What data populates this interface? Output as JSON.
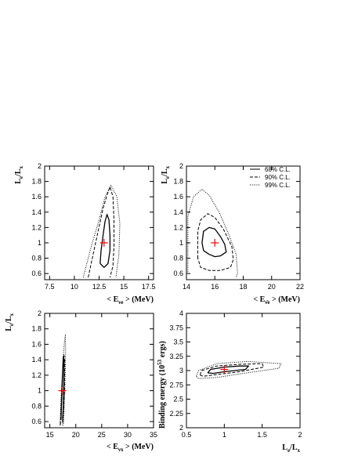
{
  "chart_data": [
    {
      "id": "p1",
      "type": "contour",
      "xlabel": "< E_{νe} > (MeV)",
      "ylabel": "L_e/L_x",
      "xlim": [
        7.0,
        18.0
      ],
      "ylim": [
        0.52,
        2.0
      ],
      "xticks": [
        "7.5",
        "10",
        "12.5",
        "15",
        "17.5"
      ],
      "xtick_values": [
        7.5,
        10,
        12.5,
        15,
        17.5
      ],
      "yticks": [
        "0.6",
        "0.8",
        "1",
        "1.2",
        "1.4",
        "1.6",
        "1.8",
        "2"
      ],
      "ytick_values": [
        0.6,
        0.8,
        1.0,
        1.2,
        1.4,
        1.6,
        1.8,
        2.0
      ],
      "best_fit": [
        13.0,
        1.0
      ],
      "contours": [
        {
          "level": "68% C.L.",
          "style": "solid",
          "points": [
            [
              12.6,
              0.73
            ],
            [
              12.7,
              0.9
            ],
            [
              12.9,
              1.1
            ],
            [
              13.1,
              1.28
            ],
            [
              13.3,
              1.37
            ],
            [
              13.5,
              1.3
            ],
            [
              13.6,
              1.1
            ],
            [
              13.6,
              0.9
            ],
            [
              13.4,
              0.73
            ],
            [
              13.0,
              0.68
            ],
            [
              12.6,
              0.73
            ]
          ]
        },
        {
          "level": "90% C.L.",
          "style": "dashed",
          "points": [
            [
              11.4,
              0.55
            ],
            [
              11.9,
              0.85
            ],
            [
              12.4,
              1.15
            ],
            [
              12.9,
              1.45
            ],
            [
              13.3,
              1.62
            ],
            [
              13.6,
              1.73
            ],
            [
              13.9,
              1.6
            ],
            [
              14.0,
              1.3
            ],
            [
              14.0,
              0.95
            ],
            [
              13.9,
              0.7
            ],
            [
              13.6,
              0.55
            ]
          ]
        },
        {
          "level": "99% C.L.",
          "style": "dotted",
          "points": [
            [
              10.9,
              0.55
            ],
            [
              11.7,
              0.95
            ],
            [
              12.5,
              1.3
            ],
            [
              13.1,
              1.6
            ],
            [
              13.7,
              1.75
            ],
            [
              14.3,
              1.6
            ],
            [
              14.6,
              1.25
            ],
            [
              14.5,
              0.85
            ],
            [
              14.2,
              0.55
            ]
          ]
        }
      ]
    },
    {
      "id": "p2",
      "type": "contour",
      "xlabel": "< E_{ν̄e} > (MeV)",
      "ylabel": "L_e/L_x",
      "xlim": [
        14.0,
        22.0
      ],
      "ylim": [
        0.52,
        2.0
      ],
      "xticks": [
        "14",
        "16",
        "18",
        "20",
        "22"
      ],
      "xtick_values": [
        14,
        16,
        18,
        20,
        22
      ],
      "yticks": [
        "0.6",
        "0.8",
        "1",
        "1.2",
        "1.4",
        "1.6",
        "1.8",
        "2"
      ],
      "ytick_values": [
        0.6,
        0.8,
        1.0,
        1.2,
        1.4,
        1.6,
        1.8,
        2.0
      ],
      "best_fit": [
        16.0,
        1.0
      ],
      "legend": [
        {
          "label": "68% C.L.",
          "style": "solid"
        },
        {
          "label": "90% C.L.",
          "style": "dashed"
        },
        {
          "label": "99% C.L.",
          "style": "dotted"
        }
      ],
      "legend_position": "top-right",
      "contours": [
        {
          "level": "68% C.L.",
          "style": "solid",
          "points": [
            [
              15.1,
              1.0
            ],
            [
              15.2,
              1.15
            ],
            [
              15.6,
              1.2
            ],
            [
              16.0,
              1.18
            ],
            [
              16.4,
              1.08
            ],
            [
              16.7,
              0.98
            ],
            [
              16.8,
              0.88
            ],
            [
              16.4,
              0.83
            ],
            [
              16.0,
              0.82
            ],
            [
              15.6,
              0.85
            ],
            [
              15.2,
              0.9
            ],
            [
              15.1,
              1.0
            ]
          ]
        },
        {
          "level": "90% C.L.",
          "style": "dashed",
          "points": [
            [
              14.8,
              0.8
            ],
            [
              14.8,
              1.15
            ],
            [
              15.0,
              1.3
            ],
            [
              15.5,
              1.38
            ],
            [
              16.0,
              1.33
            ],
            [
              16.6,
              1.18
            ],
            [
              17.2,
              0.95
            ],
            [
              17.3,
              0.78
            ],
            [
              17.1,
              0.68
            ],
            [
              16.4,
              0.64
            ],
            [
              15.6,
              0.64
            ],
            [
              15.0,
              0.68
            ],
            [
              14.8,
              0.8
            ]
          ]
        },
        {
          "level": "99% C.L.",
          "style": "dotted",
          "points": [
            [
              14.1,
              0.62
            ],
            [
              14.1,
              1.35
            ],
            [
              14.5,
              1.6
            ],
            [
              15.1,
              1.7
            ],
            [
              15.6,
              1.62
            ],
            [
              16.3,
              1.4
            ],
            [
              17.0,
              1.1
            ],
            [
              17.5,
              0.85
            ],
            [
              17.6,
              0.6
            ],
            [
              17.5,
              0.55
            ]
          ]
        }
      ]
    },
    {
      "id": "p3",
      "type": "contour",
      "xlabel": "< E_{νx} > (MeV)",
      "ylabel": "L_e/L_x",
      "xlim": [
        14.0,
        35.0
      ],
      "ylim": [
        0.52,
        2.0
      ],
      "xticks": [
        "15",
        "20",
        "25",
        "30",
        "35"
      ],
      "xtick_values": [
        15,
        20,
        25,
        30,
        35
      ],
      "yticks": [
        "0.6",
        "0.8",
        "1",
        "1.2",
        "1.4",
        "1.6",
        "1.8",
        "2"
      ],
      "ytick_values": [
        0.6,
        0.8,
        1.0,
        1.2,
        1.4,
        1.6,
        1.8,
        2.0
      ],
      "best_fit": [
        17.4,
        1.0
      ],
      "contours": [
        {
          "level": "68% C.L.",
          "style": "solid",
          "points": [
            [
              17.15,
              0.62
            ],
            [
              17.3,
              0.9
            ],
            [
              17.45,
              1.2
            ],
            [
              17.6,
              1.44
            ],
            [
              17.75,
              1.4
            ],
            [
              17.7,
              1.1
            ],
            [
              17.6,
              0.8
            ],
            [
              17.45,
              0.6
            ]
          ]
        },
        {
          "level": "90% C.L.",
          "style": "dashed",
          "points": [
            [
              17.05,
              0.56
            ],
            [
              17.25,
              0.95
            ],
            [
              17.5,
              1.3
            ],
            [
              17.7,
              1.47
            ],
            [
              17.85,
              1.4
            ],
            [
              17.8,
              1.0
            ],
            [
              17.6,
              0.7
            ],
            [
              17.45,
              0.55
            ]
          ]
        },
        {
          "level": "99% C.L.",
          "style": "dotted",
          "points": [
            [
              16.95,
              0.55
            ],
            [
              17.2,
              0.95
            ],
            [
              17.5,
              1.35
            ],
            [
              17.8,
              1.62
            ],
            [
              18.0,
              1.73
            ],
            [
              18.05,
              1.5
            ],
            [
              17.9,
              1.0
            ],
            [
              17.65,
              0.6
            ],
            [
              17.55,
              0.55
            ]
          ]
        }
      ]
    },
    {
      "id": "p4",
      "type": "contour",
      "xlabel": "L_e/L_x",
      "ylabel": "Binding energy (10^53 ergs)",
      "xlim": [
        0.5,
        2.0
      ],
      "ylim": [
        2.0,
        4.0
      ],
      "xticks": [
        "0.5",
        "1",
        "1.5",
        "2"
      ],
      "xtick_values": [
        0.5,
        1.0,
        1.5,
        2.0
      ],
      "yticks": [
        "2",
        "2.25",
        "2.5",
        "2.75",
        "3",
        "3.25",
        "3.5",
        "3.75",
        "4"
      ],
      "ytick_values": [
        2.0,
        2.25,
        2.5,
        2.75,
        3.0,
        3.25,
        3.5,
        3.75,
        4.0
      ],
      "best_fit": [
        1.0,
        3.02
      ],
      "contours": [
        {
          "level": "68% C.L.",
          "style": "solid",
          "points": [
            [
              0.78,
              2.96
            ],
            [
              0.82,
              3.02
            ],
            [
              1.0,
              3.06
            ],
            [
              1.2,
              3.08
            ],
            [
              1.32,
              3.08
            ],
            [
              1.28,
              3.02
            ],
            [
              1.0,
              2.98
            ],
            [
              0.85,
              2.95
            ],
            [
              0.78,
              2.96
            ]
          ]
        },
        {
          "level": "90% C.L.",
          "style": "dashed",
          "points": [
            [
              0.68,
              2.92
            ],
            [
              0.7,
              3.0
            ],
            [
              0.9,
              3.08
            ],
            [
              1.2,
              3.11
            ],
            [
              1.5,
              3.12
            ],
            [
              1.52,
              3.06
            ],
            [
              1.2,
              2.98
            ],
            [
              0.9,
              2.93
            ],
            [
              0.72,
              2.9
            ],
            [
              0.68,
              2.92
            ]
          ]
        },
        {
          "level": "99% C.L.",
          "style": "dotted",
          "points": [
            [
              0.63,
              2.9
            ],
            [
              0.66,
              3.0
            ],
            [
              0.9,
              3.12
            ],
            [
              1.3,
              3.16
            ],
            [
              1.75,
              3.12
            ],
            [
              1.72,
              3.04
            ],
            [
              1.3,
              2.96
            ],
            [
              0.9,
              2.88
            ],
            [
              0.66,
              2.86
            ],
            [
              0.63,
              2.9
            ]
          ]
        }
      ]
    }
  ]
}
